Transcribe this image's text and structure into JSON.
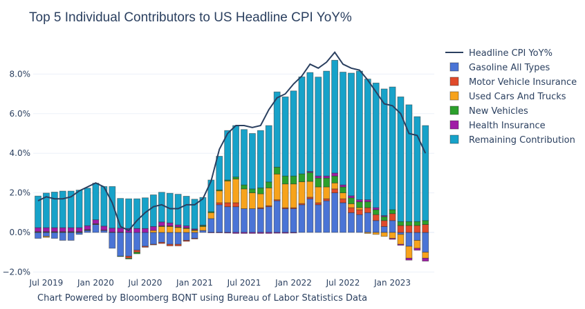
{
  "chart_data": {
    "type": "bar",
    "stacked": "relative",
    "title": "Top 5 Individual Contributors to US Headline CPI YoY%",
    "footer": "Chart Powered by Bloomberg BQNT using Bureau of Labor Statistics Data",
    "xlabel": "",
    "ylabel": "",
    "ylim": [
      -2.0,
      9.5
    ],
    "y_ticks": [
      -2,
      0,
      2,
      4,
      6,
      8
    ],
    "y_tick_labels": [
      "−2.0%",
      "0.0%",
      "2.0%",
      "4.0%",
      "6.0%",
      "8.0%"
    ],
    "x_tick_labels": [
      "Jul 2019",
      "Jan 2020",
      "Jul 2020",
      "Jan 2021",
      "Jul 2021",
      "Jan 2022",
      "Jul 2022",
      "Jan 2023"
    ],
    "x_tick_index": [
      1,
      7,
      13,
      19,
      25,
      31,
      37,
      43
    ],
    "grid": true,
    "legend_position": "right",
    "categories": [
      "Jun 2019",
      "Jul 2019",
      "Aug 2019",
      "Sep 2019",
      "Oct 2019",
      "Nov 2019",
      "Dec 2019",
      "Jan 2020",
      "Feb 2020",
      "Mar 2020",
      "Apr 2020",
      "May 2020",
      "Jun 2020",
      "Jul 2020",
      "Aug 2020",
      "Sep 2020",
      "Oct 2020",
      "Nov 2020",
      "Dec 2020",
      "Jan 2021",
      "Feb 2021",
      "Mar 2021",
      "Apr 2021",
      "May 2021",
      "Jun 2021",
      "Jul 2021",
      "Aug 2021",
      "Sep 2021",
      "Oct 2021",
      "Nov 2021",
      "Dec 2021",
      "Jan 2022",
      "Feb 2022",
      "Mar 2022",
      "Apr 2022",
      "May 2022",
      "Jun 2022",
      "Jul 2022",
      "Aug 2022",
      "Sep 2022",
      "Oct 2022",
      "Nov 2022",
      "Dec 2022",
      "Jan 2023",
      "Feb 2023",
      "Mar 2023",
      "Apr 2023",
      "May 2023"
    ],
    "line": {
      "name": "Headline CPI YoY%",
      "color": "#2a3f5f",
      "values": [
        1.6,
        1.8,
        1.7,
        1.7,
        1.8,
        2.1,
        2.3,
        2.5,
        2.3,
        1.5,
        0.3,
        0.1,
        0.6,
        1.0,
        1.3,
        1.4,
        1.2,
        1.2,
        1.4,
        1.4,
        1.7,
        2.6,
        4.2,
        5.0,
        5.4,
        5.4,
        5.3,
        5.4,
        6.2,
        6.8,
        7.0,
        7.5,
        7.9,
        8.5,
        8.3,
        8.6,
        9.1,
        8.5,
        8.3,
        8.2,
        7.7,
        7.1,
        6.5,
        6.4,
        6.0,
        5.0,
        4.9,
        4.0
      ]
    },
    "series": [
      {
        "name": "Gasoline All Types",
        "color": "#4a74d6",
        "values": [
          -0.3,
          -0.2,
          -0.3,
          -0.4,
          -0.4,
          -0.1,
          0.1,
          0.4,
          0.1,
          -0.8,
          -1.2,
          -1.2,
          -0.9,
          -0.7,
          -0.6,
          -0.5,
          -0.6,
          -0.6,
          -0.4,
          -0.3,
          0.1,
          0.7,
          1.4,
          1.3,
          1.3,
          1.2,
          1.2,
          1.2,
          1.3,
          1.6,
          1.2,
          1.2,
          1.4,
          1.7,
          1.4,
          1.6,
          2.0,
          1.5,
          1.0,
          0.9,
          1.0,
          0.6,
          0.3,
          0.6,
          -0.1,
          -0.7,
          -0.4,
          -1.0
        ]
      },
      {
        "name": "Motor Vehicle Insurance",
        "color": "#e04a2a",
        "values": [
          0.02,
          0.02,
          0.02,
          0.02,
          0.02,
          0.02,
          0.02,
          0.02,
          0.02,
          0.02,
          0.02,
          -0.1,
          -0.1,
          -0.05,
          -0.03,
          -0.06,
          -0.08,
          -0.08,
          -0.05,
          -0.03,
          0.0,
          0.0,
          0.1,
          0.2,
          0.2,
          0.0,
          0.0,
          0.05,
          0.05,
          0.05,
          0.05,
          0.05,
          0.06,
          0.08,
          0.1,
          0.1,
          0.2,
          0.2,
          0.25,
          0.25,
          0.25,
          0.3,
          0.3,
          0.35,
          0.35,
          0.35,
          0.35,
          0.4
        ]
      },
      {
        "name": "Used Cars And Trucks",
        "color": "#f7a31c",
        "values": [
          0.0,
          -0.05,
          0.0,
          0.0,
          0.0,
          0.0,
          0.0,
          0.0,
          0.0,
          0.0,
          0.0,
          0.0,
          0.0,
          0.0,
          0.1,
          0.3,
          0.3,
          0.25,
          0.2,
          0.1,
          0.2,
          0.3,
          0.6,
          1.1,
          1.2,
          1.0,
          0.8,
          0.7,
          0.9,
          1.3,
          1.2,
          1.2,
          1.1,
          0.8,
          0.8,
          0.6,
          0.3,
          0.3,
          0.2,
          0.1,
          -0.05,
          -0.1,
          -0.2,
          -0.3,
          -0.5,
          -0.6,
          -0.4,
          -0.3
        ]
      },
      {
        "name": "New Vehicles",
        "color": "#2ca02c",
        "values": [
          0.02,
          0.02,
          0.02,
          0.02,
          0.02,
          0.02,
          0.02,
          0.02,
          0.0,
          0.0,
          -0.02,
          -0.04,
          -0.08,
          0.0,
          0.0,
          0.03,
          0.03,
          0.03,
          0.03,
          0.03,
          0.05,
          0.05,
          0.05,
          0.05,
          0.1,
          0.2,
          0.2,
          0.3,
          0.3,
          0.35,
          0.4,
          0.4,
          0.4,
          0.45,
          0.45,
          0.45,
          0.35,
          0.3,
          0.3,
          0.3,
          0.3,
          0.25,
          0.2,
          0.2,
          0.2,
          0.2,
          0.2,
          0.2
        ]
      },
      {
        "name": "Health Insurance",
        "color": "#a01ca6",
        "values": [
          0.2,
          0.2,
          0.2,
          0.2,
          0.2,
          0.2,
          0.2,
          0.2,
          0.2,
          0.2,
          0.2,
          0.2,
          0.2,
          0.2,
          0.2,
          0.2,
          0.15,
          0.1,
          0.1,
          0.05,
          0.02,
          -0.02,
          -0.02,
          -0.03,
          -0.05,
          -0.05,
          -0.05,
          -0.05,
          -0.05,
          -0.04,
          -0.04,
          -0.03,
          0.0,
          0.05,
          0.1,
          0.1,
          0.15,
          0.1,
          0.1,
          0.1,
          0.1,
          0.1,
          0.05,
          -0.05,
          -0.05,
          -0.1,
          -0.1,
          -0.15
        ]
      },
      {
        "name": "Remaining Contribution",
        "color": "#17a2c9",
        "values": [
          1.6,
          1.75,
          1.8,
          1.85,
          1.85,
          1.9,
          1.9,
          1.85,
          2.0,
          2.1,
          1.5,
          1.5,
          1.5,
          1.55,
          1.6,
          1.5,
          1.5,
          1.55,
          1.5,
          1.5,
          1.4,
          1.6,
          1.7,
          2.5,
          2.6,
          2.8,
          2.8,
          2.9,
          2.85,
          3.8,
          4.0,
          4.3,
          4.9,
          5.0,
          5.0,
          5.3,
          5.7,
          5.7,
          6.2,
          6.5,
          6.1,
          6.3,
          6.4,
          6.2,
          6.3,
          5.9,
          5.3,
          4.8
        ]
      }
    ]
  }
}
